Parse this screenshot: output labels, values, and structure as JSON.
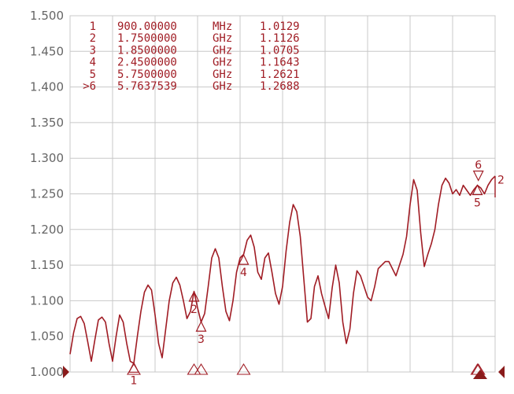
{
  "chart_data": {
    "type": "line",
    "colors": {
      "trace": "#a01c24",
      "grid": "#c8c8c8",
      "axis_text": "#666666",
      "marker_fill": "#8a1b1b"
    },
    "ylim": [
      1.0,
      1.5
    ],
    "ytick_labels": [
      "1.500",
      "1.450",
      "1.400",
      "1.350",
      "1.300",
      "1.250",
      "1.200",
      "1.150",
      "1.100",
      "1.050",
      "1.000"
    ],
    "yticks": [
      1.5,
      1.45,
      1.4,
      1.35,
      1.3,
      1.25,
      1.2,
      1.15,
      1.1,
      1.05,
      1.0
    ],
    "xlim": [
      0,
      6.0
    ],
    "x_divisions": 10,
    "grid": true,
    "markers": [
      {
        "num": "1",
        "freq": "900.00000",
        "unit": "MHz",
        "value": "1.0129",
        "x": 0.9,
        "y": 1.0129,
        "orient": "up",
        "label_pos": "below"
      },
      {
        "num": "2",
        "freq": "1.7500000",
        "unit": "GHz",
        "value": "1.1126",
        "x": 1.75,
        "y": 1.1126,
        "orient": "up",
        "label_pos": "below"
      },
      {
        "num": "3",
        "freq": "1.8500000",
        "unit": "GHz",
        "value": "1.0705",
        "x": 1.85,
        "y": 1.0705,
        "orient": "up",
        "label_pos": "below"
      },
      {
        "num": "4",
        "freq": "2.4500000",
        "unit": "GHz",
        "value": "1.1643",
        "x": 2.45,
        "y": 1.1643,
        "orient": "up",
        "label_pos": "below"
      },
      {
        "num": "5",
        "freq": "5.7500000",
        "unit": "GHz",
        "value": "1.2621",
        "x": 5.75,
        "y": 1.2621,
        "orient": "up",
        "label_pos": "below"
      },
      {
        "num": ">6",
        "freq": "5.7637539",
        "unit": "GHz",
        "value": "1.2688",
        "x": 5.7637539,
        "y": 1.2688,
        "orient": "down",
        "label_pos": "above",
        "glyph_label": "6"
      }
    ],
    "right_edge_label": "2",
    "series": [
      {
        "x": [
          0.0,
          0.05,
          0.1,
          0.15,
          0.2,
          0.25,
          0.3,
          0.35,
          0.4,
          0.45,
          0.5,
          0.55,
          0.6,
          0.65,
          0.7,
          0.75,
          0.8,
          0.85,
          0.9,
          0.95,
          1.0,
          1.05,
          1.1,
          1.15,
          1.2,
          1.25,
          1.3,
          1.35,
          1.4,
          1.45,
          1.5,
          1.55,
          1.6,
          1.65,
          1.7,
          1.75,
          1.8,
          1.85,
          1.9,
          1.95,
          2.0,
          2.05,
          2.1,
          2.15,
          2.2,
          2.25,
          2.3,
          2.35,
          2.4,
          2.45,
          2.5,
          2.55,
          2.6,
          2.65,
          2.7,
          2.75,
          2.8,
          2.85,
          2.9,
          2.95,
          3.0,
          3.05,
          3.1,
          3.15,
          3.2,
          3.25,
          3.3,
          3.35,
          3.4,
          3.45,
          3.5,
          3.55,
          3.6,
          3.65,
          3.7,
          3.75,
          3.8,
          3.85,
          3.9,
          3.95,
          4.0,
          4.05,
          4.1,
          4.15,
          4.2,
          4.25,
          4.3,
          4.35,
          4.4,
          4.45,
          4.5,
          4.55,
          4.6,
          4.65,
          4.7,
          4.75,
          4.8,
          4.85,
          4.9,
          4.95,
          5.0,
          5.05,
          5.1,
          5.15,
          5.2,
          5.25,
          5.3,
          5.35,
          5.4,
          5.45,
          5.5,
          5.55,
          5.6,
          5.65,
          5.7,
          5.75,
          5.8,
          5.85,
          5.9,
          5.95,
          6.0
        ],
        "values": [
          1.025,
          1.055,
          1.075,
          1.078,
          1.068,
          1.042,
          1.015,
          1.045,
          1.073,
          1.077,
          1.07,
          1.04,
          1.015,
          1.05,
          1.08,
          1.07,
          1.04,
          1.015,
          1.012,
          1.05,
          1.085,
          1.112,
          1.122,
          1.115,
          1.08,
          1.04,
          1.02,
          1.06,
          1.1,
          1.125,
          1.133,
          1.122,
          1.1,
          1.075,
          1.085,
          1.113,
          1.09,
          1.07,
          1.082,
          1.12,
          1.16,
          1.173,
          1.16,
          1.12,
          1.085,
          1.072,
          1.1,
          1.14,
          1.16,
          1.165,
          1.185,
          1.192,
          1.175,
          1.14,
          1.13,
          1.16,
          1.167,
          1.14,
          1.11,
          1.095,
          1.12,
          1.17,
          1.21,
          1.235,
          1.225,
          1.19,
          1.13,
          1.07,
          1.075,
          1.12,
          1.135,
          1.11,
          1.092,
          1.075,
          1.118,
          1.15,
          1.125,
          1.07,
          1.04,
          1.06,
          1.11,
          1.142,
          1.135,
          1.12,
          1.105,
          1.1,
          1.12,
          1.145,
          1.15,
          1.155,
          1.155,
          1.145,
          1.135,
          1.15,
          1.165,
          1.19,
          1.235,
          1.27,
          1.255,
          1.195,
          1.148,
          1.165,
          1.18,
          1.2,
          1.235,
          1.262,
          1.272,
          1.265,
          1.25,
          1.256,
          1.248,
          1.262,
          1.255,
          1.248,
          1.256,
          1.262,
          1.258,
          1.25,
          1.262,
          1.27,
          1.275
        ]
      }
    ]
  }
}
